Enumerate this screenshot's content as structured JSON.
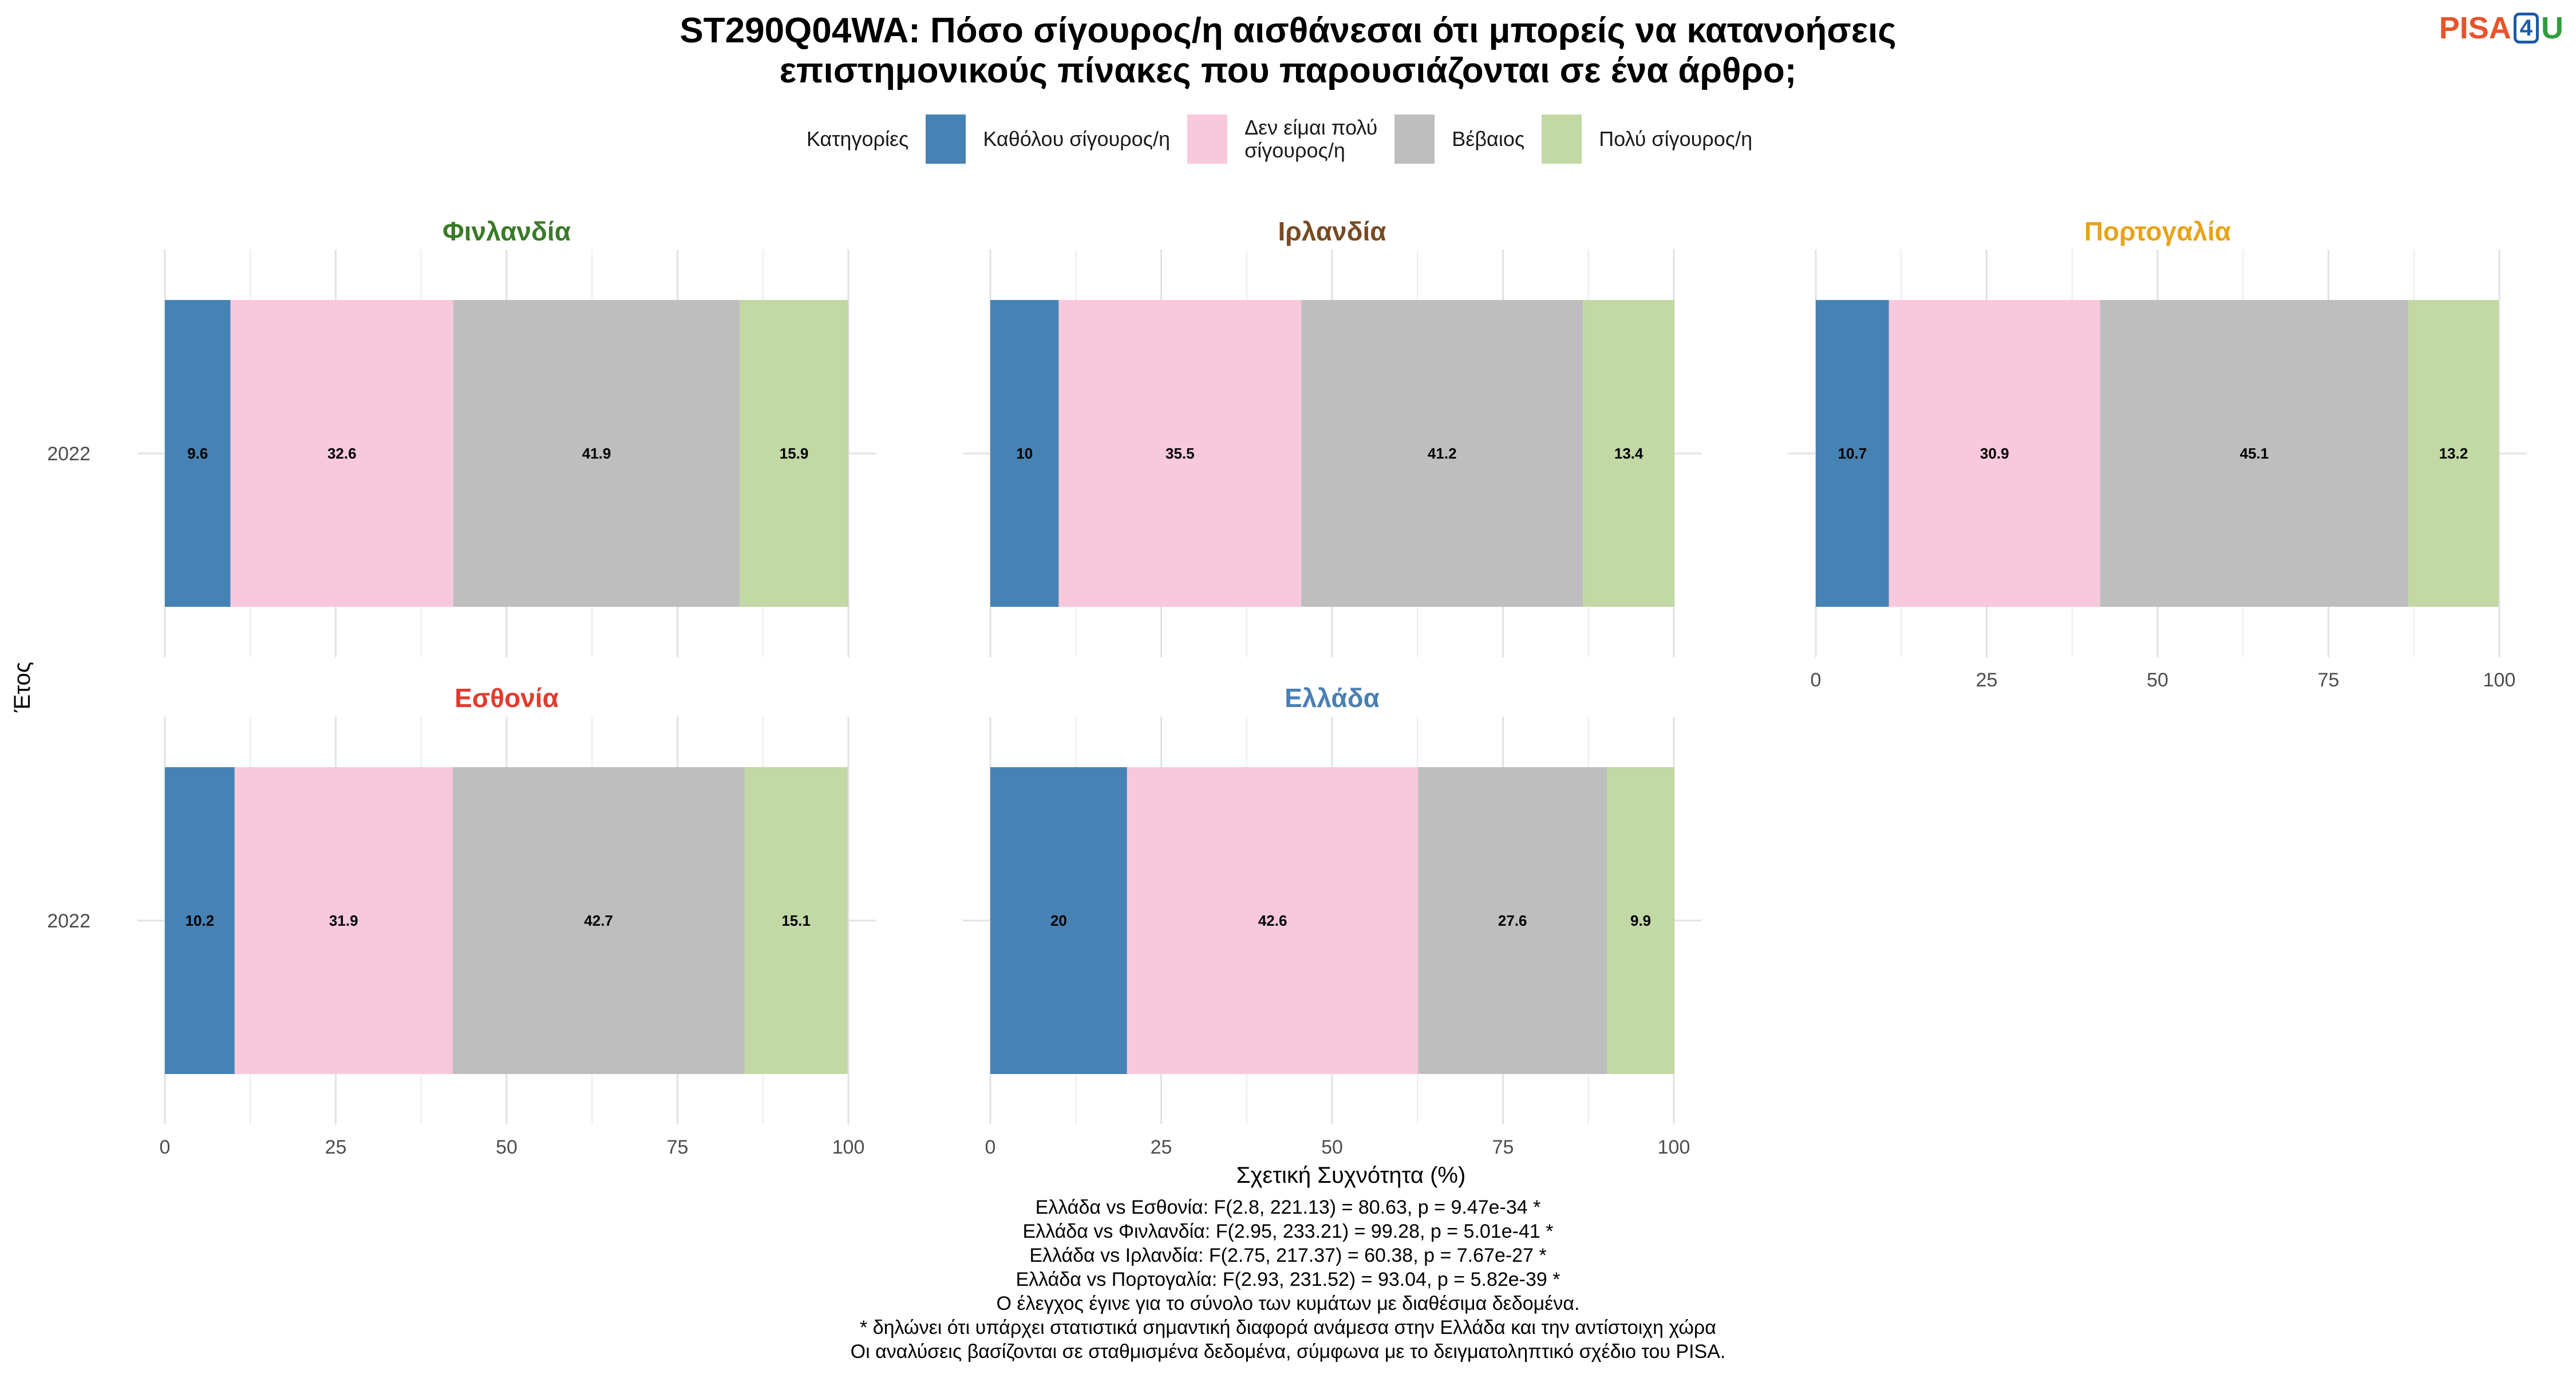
{
  "title_lines": [
    "ST290Q04WA: Πόσο σίγουρος/η αισθάνεσαι ότι μπορείς να κατανοήσεις",
    "επιστημονικούς πίνακες που παρουσιάζονται σε ένα άρθρο;"
  ],
  "logo": {
    "pisa": "PISA",
    "four": "4",
    "u": "U"
  },
  "legend": {
    "title": "Κατηγορίες",
    "items": [
      {
        "label": "Καθόλου σίγουρος/η",
        "color": "#4682B4"
      },
      {
        "label": "Δεν είμαι πολύ\nσίγουρος/η",
        "color": "#F8C8DC"
      },
      {
        "label": "Βέβαιος",
        "color": "#BEBEBE"
      },
      {
        "label": "Πολύ σίγουρος/η",
        "color": "#C2D8A5"
      }
    ]
  },
  "chart_data": {
    "type": "bar",
    "orientation": "horizontal",
    "stacked": true,
    "xlabel": "Σχετική Συχνότητα (%)",
    "ylabel": "Έτος",
    "xlim": [
      0,
      100
    ],
    "x_ticks": [
      0,
      25,
      50,
      75,
      100
    ],
    "categories": [
      "Καθόλου σίγουρος/η",
      "Δεν είμαι πολύ σίγουρος/η",
      "Βέβαιος",
      "Πολύ σίγουρος/η"
    ],
    "colors": [
      "#4682B4",
      "#F8C8DC",
      "#BEBEBE",
      "#C2D8A5"
    ],
    "panels": [
      {
        "name": "Φινλανδία",
        "title_color": "#3a7a2a",
        "year": "2022",
        "values": [
          9.6,
          32.6,
          41.9,
          15.9
        ]
      },
      {
        "name": "Ιρλανδία",
        "title_color": "#7a4a22",
        "year": "2022",
        "values": [
          10,
          35.5,
          41.2,
          13.4
        ]
      },
      {
        "name": "Πορτογαλία",
        "title_color": "#e8a317",
        "year": "2022",
        "values": [
          10.7,
          30.9,
          45.1,
          13.2
        ]
      },
      {
        "name": "Εσθονία",
        "title_color": "#e23a2e",
        "year": "2022",
        "values": [
          10.2,
          31.9,
          42.7,
          15.1
        ]
      },
      {
        "name": "Ελλάδα",
        "title_color": "#4a7fb5",
        "year": "2022",
        "values": [
          20,
          42.6,
          27.6,
          9.9
        ]
      }
    ]
  },
  "footnotes": [
    "Ελλάδα vs Εσθονία: F(2.8, 221.13) = 80.63, p = 9.47e-34 *",
    "Ελλάδα vs Φινλανδία: F(2.95, 233.21) = 99.28, p = 5.01e-41 *",
    "Ελλάδα vs Ιρλανδία: F(2.75, 217.37) = 60.38, p = 7.67e-27 *",
    "Ελλάδα vs Πορτογαλία: F(2.93, 231.52) = 93.04, p = 5.82e-39 *",
    "Ο έλεγχος έγινε για το σύνολο των κυμάτων με διαθέσιμα δεδομένα.",
    "* δηλώνει ότι υπάρχει στατιστικά σημαντική διαφορά ανάμεσα στην Ελλάδα και την αντίστοιχη χώρα",
    "Οι αναλύσεις βασίζονται σε σταθμισμένα δεδομένα, σύμφωνα με το δειγματοληπτικό σχέδιο του PISA."
  ]
}
